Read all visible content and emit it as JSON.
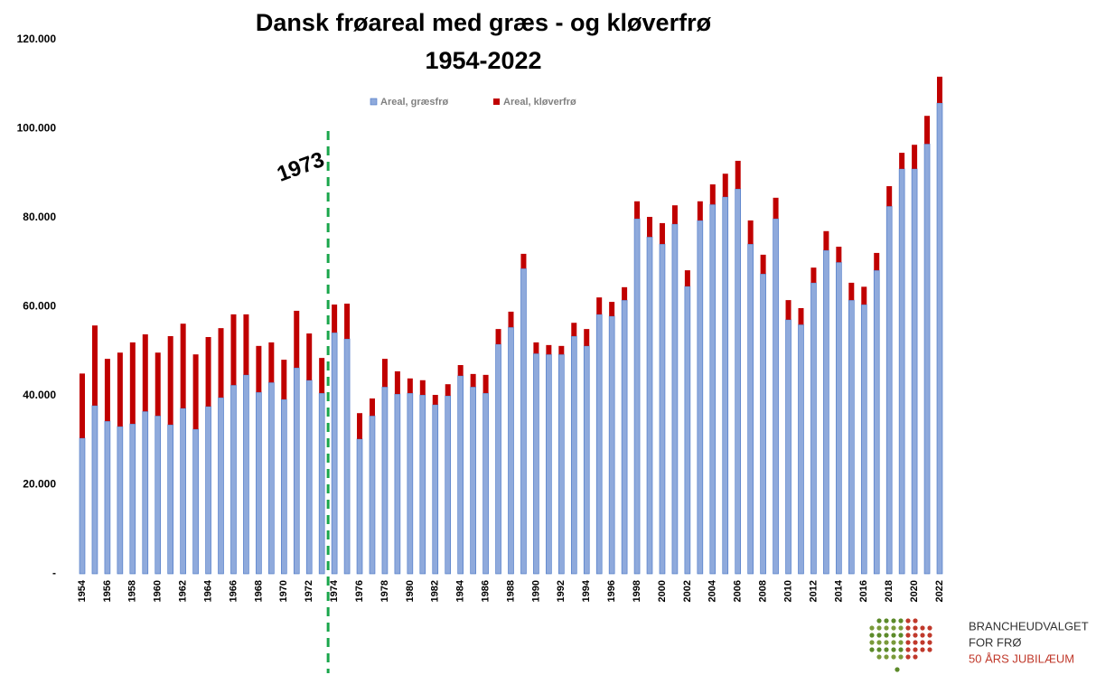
{
  "chart_data": {
    "type": "stacked_bar",
    "title": "Dansk frøareal med græs - og kløverfrø",
    "subtitle": "1954-2022",
    "annotation": "1973",
    "categories": [
      "1954",
      null,
      "1956",
      null,
      "1958",
      null,
      "1960",
      null,
      "1962",
      null,
      "1964",
      null,
      "1966",
      null,
      "1968",
      null,
      "1970",
      null,
      "1972",
      null,
      "1974",
      null,
      "1976",
      null,
      "1978",
      null,
      "1980",
      null,
      "1982",
      null,
      "1984",
      null,
      "1986",
      null,
      "1988",
      null,
      "1990",
      null,
      "1992",
      null,
      "1994",
      null,
      "1996",
      null,
      "1998",
      null,
      "2000",
      null,
      "2002",
      null,
      "2004",
      null,
      "2006",
      null,
      "2008",
      null,
      "2010",
      null,
      "2012",
      null,
      "2014",
      null,
      "2016",
      null,
      "2018",
      null,
      "2020",
      null,
      "2022"
    ],
    "series": [
      {
        "name": "Areal, græsfrø",
        "color": "#8faadc",
        "values": [
          30500,
          37800,
          34300,
          33100,
          33700,
          36500,
          35500,
          33500,
          37200,
          32500,
          37600,
          39600,
          42400,
          44700,
          40800,
          43000,
          39200,
          46300,
          43500,
          40600,
          54200,
          52800,
          30300,
          35500,
          42000,
          40400,
          40600,
          40200,
          38000,
          40000,
          44500,
          42000,
          40600,
          51600,
          55400,
          68600,
          49500,
          49300,
          49300,
          53400,
          51200,
          58300,
          57900,
          61500,
          79800,
          75700,
          74100,
          78600,
          64600,
          79400,
          83000,
          84700,
          86500,
          74100,
          67400,
          79800,
          57100,
          56000,
          65400,
          72700,
          70000,
          61500,
          60500,
          68200,
          82600,
          91000,
          91000,
          96600,
          105800
        ]
      },
      {
        "name": "Areal, kløverfrø",
        "color": "#c00000",
        "values": [
          14500,
          18000,
          14000,
          16600,
          18300,
          17300,
          14200,
          19900,
          19000,
          16800,
          15600,
          15600,
          15900,
          13600,
          10400,
          9000,
          8900,
          12800,
          10500,
          7900,
          6300,
          7900,
          5800,
          3900,
          6300,
          5100,
          3300,
          3300,
          2200,
          2600,
          2400,
          2900,
          4100,
          3400,
          3500,
          3300,
          2500,
          2100,
          1900,
          3000,
          3800,
          3800,
          3200,
          2900,
          3900,
          4500,
          4700,
          4200,
          3600,
          4300,
          4500,
          5200,
          6300,
          5300,
          4300,
          4700,
          4400,
          3700,
          3400,
          4300,
          3500,
          3900,
          4000,
          3900,
          4500,
          3600,
          5400,
          6300,
          5900
        ]
      }
    ],
    "ylim": [
      0,
      120000
    ],
    "yticks": [
      {
        "value": 0,
        "label": "-"
      },
      {
        "value": 20000,
        "label": "20.000"
      },
      {
        "value": 40000,
        "label": "40.000"
      },
      {
        "value": 60000,
        "label": "60.000"
      },
      {
        "value": 80000,
        "label": "80.000"
      },
      {
        "value": 100000,
        "label": "100.000"
      },
      {
        "value": 120000,
        "label": "120.000"
      }
    ],
    "legend": "top"
  },
  "logo": {
    "lines": [
      "BRANCHEUDVALGET",
      "FOR FRØ",
      "50 ÅRS JUBILÆUM"
    ]
  }
}
